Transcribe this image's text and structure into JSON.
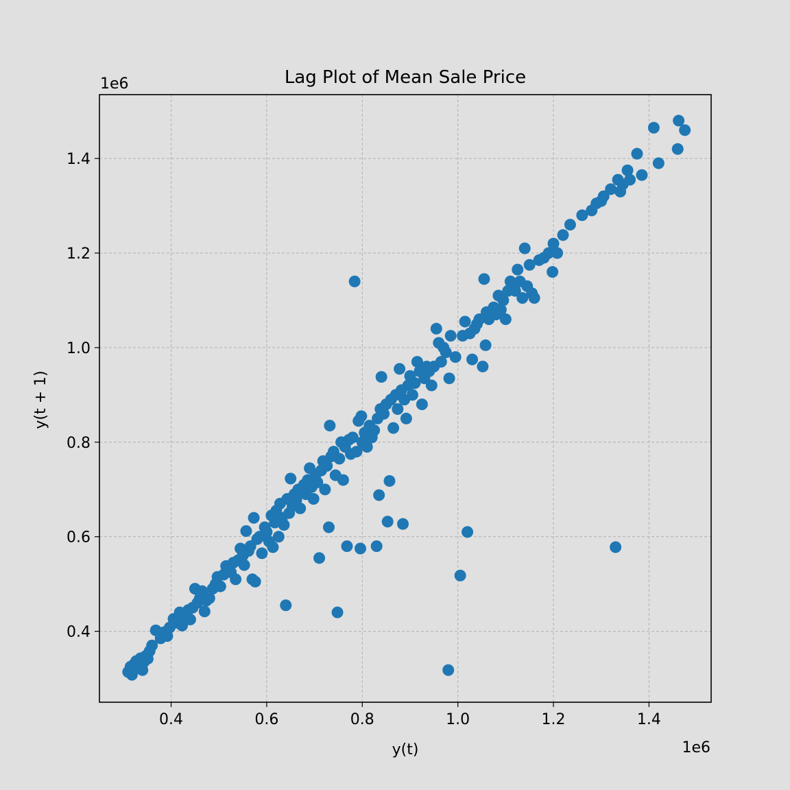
{
  "chart_data": {
    "type": "scatter",
    "title": "Lag Plot of Mean Sale Price",
    "xlabel": "y(t)",
    "ylabel": "y(t + 1)",
    "x_offset_label": "1e6",
    "y_offset_label": "1e6",
    "xlim": [
      0.25,
      1.53
    ],
    "ylim": [
      0.25,
      1.535
    ],
    "xticks": [
      0.4,
      0.6,
      0.8,
      1.0,
      1.2,
      1.4
    ],
    "yticks": [
      0.4,
      0.6,
      0.8,
      1.0,
      1.2,
      1.4
    ],
    "xtick_labels": [
      "0.4",
      "0.6",
      "0.8",
      "1.0",
      "1.2",
      "1.4"
    ],
    "ytick_labels": [
      "0.4",
      "0.6",
      "0.8",
      "1.0",
      "1.2",
      "1.4"
    ],
    "grid": true,
    "marker_color": "#1f77b4",
    "series": [
      {
        "points": [
          [
            0.31,
            0.314
          ],
          [
            0.315,
            0.325
          ],
          [
            0.318,
            0.308
          ],
          [
            0.322,
            0.33
          ],
          [
            0.327,
            0.337
          ],
          [
            0.332,
            0.322
          ],
          [
            0.336,
            0.343
          ],
          [
            0.34,
            0.318
          ],
          [
            0.343,
            0.335
          ],
          [
            0.347,
            0.348
          ],
          [
            0.351,
            0.342
          ],
          [
            0.355,
            0.358
          ],
          [
            0.36,
            0.37
          ],
          [
            0.368,
            0.402
          ],
          [
            0.378,
            0.385
          ],
          [
            0.385,
            0.398
          ],
          [
            0.392,
            0.39
          ],
          [
            0.397,
            0.408
          ],
          [
            0.405,
            0.426
          ],
          [
            0.412,
            0.418
          ],
          [
            0.418,
            0.44
          ],
          [
            0.423,
            0.412
          ],
          [
            0.43,
            0.43
          ],
          [
            0.436,
            0.445
          ],
          [
            0.44,
            0.425
          ],
          [
            0.445,
            0.45
          ],
          [
            0.45,
            0.49
          ],
          [
            0.455,
            0.46
          ],
          [
            0.46,
            0.47
          ],
          [
            0.465,
            0.485
          ],
          [
            0.47,
            0.442
          ],
          [
            0.474,
            0.465
          ],
          [
            0.48,
            0.47
          ],
          [
            0.487,
            0.49
          ],
          [
            0.493,
            0.5
          ],
          [
            0.497,
            0.515
          ],
          [
            0.503,
            0.495
          ],
          [
            0.51,
            0.52
          ],
          [
            0.515,
            0.538
          ],
          [
            0.52,
            0.53
          ],
          [
            0.525,
            0.525
          ],
          [
            0.53,
            0.545
          ],
          [
            0.535,
            0.51
          ],
          [
            0.54,
            0.55
          ],
          [
            0.545,
            0.575
          ],
          [
            0.55,
            0.56
          ],
          [
            0.553,
            0.54
          ],
          [
            0.557,
            0.612
          ],
          [
            0.562,
            0.57
          ],
          [
            0.566,
            0.58
          ],
          [
            0.57,
            0.51
          ],
          [
            0.573,
            0.64
          ],
          [
            0.576,
            0.505
          ],
          [
            0.58,
            0.595
          ],
          [
            0.585,
            0.6
          ],
          [
            0.59,
            0.565
          ],
          [
            0.596,
            0.62
          ],
          [
            0.6,
            0.61
          ],
          [
            0.605,
            0.59
          ],
          [
            0.61,
            0.645
          ],
          [
            0.613,
            0.578
          ],
          [
            0.617,
            0.63
          ],
          [
            0.62,
            0.655
          ],
          [
            0.625,
            0.6
          ],
          [
            0.628,
            0.67
          ],
          [
            0.632,
            0.64
          ],
          [
            0.636,
            0.625
          ],
          [
            0.64,
            0.455
          ],
          [
            0.643,
            0.68
          ],
          [
            0.647,
            0.65
          ],
          [
            0.65,
            0.723
          ],
          [
            0.654,
            0.665
          ],
          [
            0.658,
            0.69
          ],
          [
            0.662,
            0.678
          ],
          [
            0.666,
            0.7
          ],
          [
            0.67,
            0.66
          ],
          [
            0.674,
            0.7
          ],
          [
            0.678,
            0.71
          ],
          [
            0.682,
            0.69
          ],
          [
            0.686,
            0.72
          ],
          [
            0.69,
            0.745
          ],
          [
            0.694,
            0.705
          ],
          [
            0.698,
            0.68
          ],
          [
            0.702,
            0.73
          ],
          [
            0.706,
            0.715
          ],
          [
            0.71,
            0.555
          ],
          [
            0.714,
            0.74
          ],
          [
            0.718,
            0.76
          ],
          [
            0.722,
            0.7
          ],
          [
            0.726,
            0.75
          ],
          [
            0.73,
            0.62
          ],
          [
            0.732,
            0.835
          ],
          [
            0.735,
            0.77
          ],
          [
            0.74,
            0.78
          ],
          [
            0.744,
            0.73
          ],
          [
            0.748,
            0.44
          ],
          [
            0.752,
            0.765
          ],
          [
            0.756,
            0.8
          ],
          [
            0.76,
            0.72
          ],
          [
            0.764,
            0.79
          ],
          [
            0.768,
            0.58
          ],
          [
            0.772,
            0.805
          ],
          [
            0.776,
            0.775
          ],
          [
            0.78,
            0.81
          ],
          [
            0.784,
            1.14
          ],
          [
            0.788,
            0.78
          ],
          [
            0.792,
            0.845
          ],
          [
            0.796,
            0.575
          ],
          [
            0.798,
            0.855
          ],
          [
            0.8,
            0.8
          ],
          [
            0.805,
            0.82
          ],
          [
            0.81,
            0.79
          ],
          [
            0.815,
            0.835
          ],
          [
            0.82,
            0.81
          ],
          [
            0.825,
            0.825
          ],
          [
            0.83,
            0.58
          ],
          [
            0.832,
            0.85
          ],
          [
            0.835,
            0.688
          ],
          [
            0.838,
            0.87
          ],
          [
            0.84,
            0.938
          ],
          [
            0.845,
            0.86
          ],
          [
            0.85,
            0.88
          ],
          [
            0.853,
            0.632
          ],
          [
            0.857,
            0.718
          ],
          [
            0.86,
            0.89
          ],
          [
            0.865,
            0.83
          ],
          [
            0.87,
            0.9
          ],
          [
            0.874,
            0.87
          ],
          [
            0.878,
            0.955
          ],
          [
            0.882,
            0.91
          ],
          [
            0.885,
            0.627
          ],
          [
            0.888,
            0.89
          ],
          [
            0.892,
            0.85
          ],
          [
            0.896,
            0.92
          ],
          [
            0.9,
            0.94
          ],
          [
            0.905,
            0.9
          ],
          [
            0.91,
            0.925
          ],
          [
            0.915,
            0.97
          ],
          [
            0.92,
            0.95
          ],
          [
            0.925,
            0.88
          ],
          [
            0.93,
            0.935
          ],
          [
            0.935,
            0.96
          ],
          [
            0.94,
            0.95
          ],
          [
            0.945,
            0.92
          ],
          [
            0.95,
            0.96
          ],
          [
            0.955,
            1.04
          ],
          [
            0.96,
            1.01
          ],
          [
            0.965,
            0.97
          ],
          [
            0.97,
            1.0
          ],
          [
            0.975,
            0.99
          ],
          [
            0.98,
            0.318
          ],
          [
            0.982,
            0.935
          ],
          [
            0.985,
            1.025
          ],
          [
            0.995,
            0.98
          ],
          [
            1.005,
            0.518
          ],
          [
            1.01,
            1.025
          ],
          [
            1.015,
            1.055
          ],
          [
            1.02,
            0.61
          ],
          [
            1.025,
            1.03
          ],
          [
            1.03,
            0.975
          ],
          [
            1.035,
            1.04
          ],
          [
            1.04,
            1.05
          ],
          [
            1.045,
            1.06
          ],
          [
            1.052,
            0.96
          ],
          [
            1.055,
            1.145
          ],
          [
            1.058,
            1.005
          ],
          [
            1.06,
            1.075
          ],
          [
            1.065,
            1.06
          ],
          [
            1.07,
            1.07
          ],
          [
            1.075,
            1.085
          ],
          [
            1.08,
            1.07
          ],
          [
            1.085,
            1.11
          ],
          [
            1.09,
            1.08
          ],
          [
            1.095,
            1.1
          ],
          [
            1.1,
            1.06
          ],
          [
            1.105,
            1.12
          ],
          [
            1.11,
            1.14
          ],
          [
            1.115,
            1.13
          ],
          [
            1.12,
            1.12
          ],
          [
            1.125,
            1.165
          ],
          [
            1.13,
            1.14
          ],
          [
            1.135,
            1.105
          ],
          [
            1.14,
            1.21
          ],
          [
            1.145,
            1.13
          ],
          [
            1.15,
            1.175
          ],
          [
            1.155,
            1.115
          ],
          [
            1.16,
            1.105
          ],
          [
            1.17,
            1.185
          ],
          [
            1.18,
            1.19
          ],
          [
            1.19,
            1.2
          ],
          [
            1.198,
            1.16
          ],
          [
            1.2,
            1.22
          ],
          [
            1.208,
            1.2
          ],
          [
            1.22,
            1.238
          ],
          [
            1.235,
            1.26
          ],
          [
            1.26,
            1.28
          ],
          [
            1.28,
            1.29
          ],
          [
            1.29,
            1.305
          ],
          [
            1.3,
            1.31
          ],
          [
            1.305,
            1.32
          ],
          [
            1.32,
            1.335
          ],
          [
            1.33,
            0.578
          ],
          [
            1.335,
            1.355
          ],
          [
            1.34,
            1.33
          ],
          [
            1.345,
            1.345
          ],
          [
            1.355,
            1.375
          ],
          [
            1.36,
            1.355
          ],
          [
            1.375,
            1.41
          ],
          [
            1.385,
            1.365
          ],
          [
            1.41,
            1.465
          ],
          [
            1.42,
            1.39
          ],
          [
            1.46,
            1.42
          ],
          [
            1.462,
            1.48
          ],
          [
            1.475,
            1.46
          ]
        ]
      }
    ]
  }
}
